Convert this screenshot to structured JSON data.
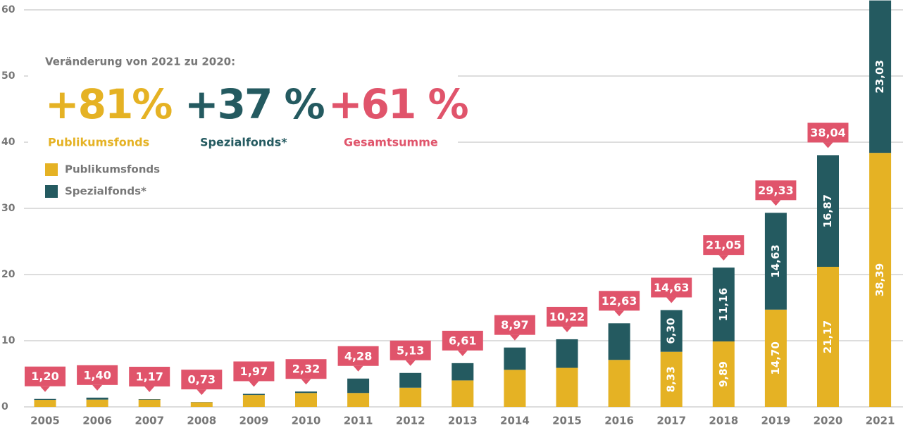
{
  "chart_data": {
    "type": "stacked-bar",
    "categories": [
      "2005",
      "2006",
      "2007",
      "2008",
      "2009",
      "2010",
      "2011",
      "2012",
      "2013",
      "2014",
      "2015",
      "2016",
      "2017",
      "2018",
      "2019",
      "2020",
      "2021"
    ],
    "series": [
      {
        "name": "Publikumsfonds",
        "color": "#e5b224",
        "values": [
          1.06,
          1.1,
          1.1,
          0.7,
          1.8,
          2.1,
          2.1,
          2.9,
          4.0,
          5.6,
          5.9,
          7.1,
          8.33,
          9.89,
          14.7,
          21.17,
          38.39
        ],
        "value_labels": [
          null,
          null,
          null,
          null,
          null,
          null,
          null,
          null,
          null,
          null,
          null,
          null,
          "8,33",
          "9,89",
          "14,70",
          "21,17",
          "38,39"
        ]
      },
      {
        "name": "Spezialfonds*",
        "color": "#245a60",
        "values": [
          0.14,
          0.3,
          0.07,
          0.03,
          0.17,
          0.22,
          2.18,
          2.23,
          2.61,
          3.37,
          4.32,
          5.53,
          6.3,
          11.16,
          14.63,
          16.87,
          23.03
        ],
        "value_labels": [
          null,
          null,
          null,
          null,
          null,
          null,
          null,
          null,
          null,
          null,
          null,
          null,
          "6,30",
          "11,16",
          "14,63",
          "16,87",
          "23,03"
        ]
      }
    ],
    "totals": [
      1.2,
      1.4,
      1.17,
      0.73,
      1.97,
      2.32,
      4.28,
      5.13,
      6.61,
      8.97,
      10.22,
      12.63,
      14.63,
      21.05,
      29.33,
      38.04,
      null
    ],
    "total_labels": [
      "1,20",
      "1,40",
      "1,17",
      "0,73",
      "1,97",
      "2,32",
      "4,28",
      "5,13",
      "6,61",
      "8,97",
      "10,22",
      "12,63",
      "14,63",
      "21,05",
      "29,33",
      "38,04",
      null
    ],
    "total_color": "#e0546b",
    "ylim": [
      0,
      60
    ],
    "yticks": [
      0,
      10,
      20,
      30,
      40,
      50,
      60
    ],
    "grid": true,
    "annotation": {
      "title": "Veränderung von 2021 zu 2020:",
      "items": [
        {
          "value": "+81%",
          "label": "Publikumsfonds",
          "color": "#e5b224"
        },
        {
          "value": "+37 %",
          "label": "Spezialfonds*",
          "color": "#245a60"
        },
        {
          "value": "+61 %",
          "label": "Gesamtsumme",
          "color": "#e0546b"
        }
      ]
    }
  }
}
